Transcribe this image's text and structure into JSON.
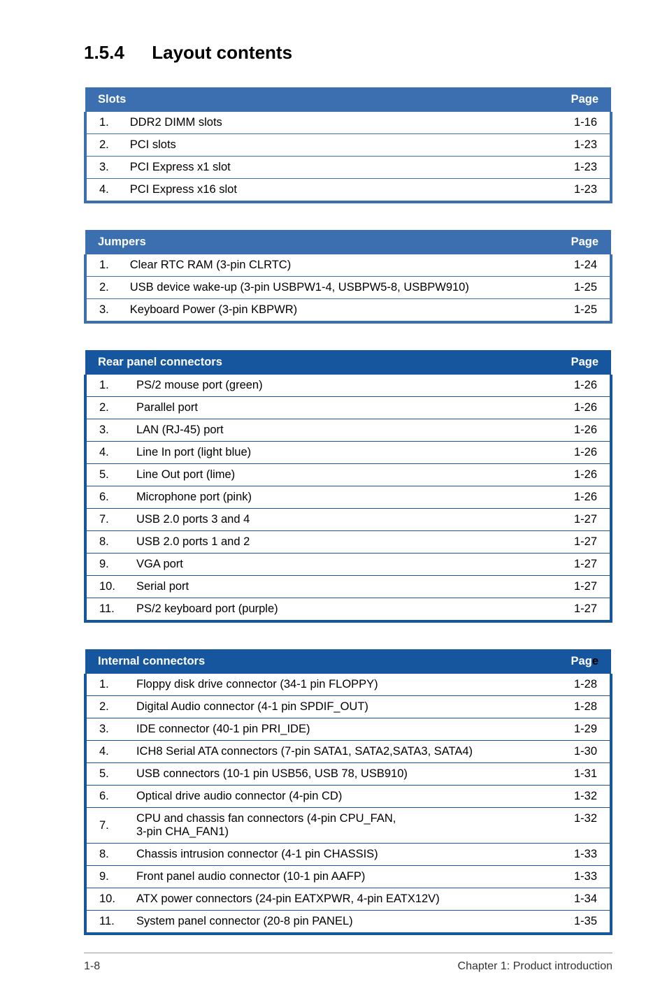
{
  "heading": {
    "number": "1.5.4",
    "title": "Layout contents"
  },
  "tables": [
    {
      "header_label": "Slots",
      "page_label": "Page",
      "header_bg": "#3b6fb0",
      "border_color": "#3b6fb0",
      "rows": [
        {
          "idx": "1.",
          "label": "DDR2 DIMM slots",
          "page": "1-16"
        },
        {
          "idx": "2.",
          "label": "PCI slots",
          "page": "1-23"
        },
        {
          "idx": "3.",
          "label": "PCI Express x1 slot",
          "page": "1-23"
        },
        {
          "idx": "4.",
          "label": "PCI Express x16 slot",
          "page": "1-23"
        }
      ]
    },
    {
      "header_label": "Jumpers",
      "page_label": "Page",
      "header_bg": "#3b6fb0",
      "border_color": "#3b6fb0",
      "rows": [
        {
          "idx": "1.",
          "label": "Clear RTC RAM (3-pin CLRTC)",
          "page": "1-24"
        },
        {
          "idx": "2.",
          "label": "USB device wake-up (3-pin USBPW1-4, USBPW5-8, USBPW910)",
          "page": "1-25"
        },
        {
          "idx": "3.",
          "label": "Keyboard Power (3-pin KBPWR)",
          "page": "1-25"
        }
      ]
    },
    {
      "header_label": "Rear panel connectors",
      "page_label": "Page",
      "header_bg": "#16569e",
      "border_color": "#16569e",
      "rows": [
        {
          "idx": "1.",
          "label": "PS/2 mouse port (green)",
          "page": "1-26"
        },
        {
          "idx": "2.",
          "label": "Parallel port",
          "page": "1-26"
        },
        {
          "idx": "3.",
          "label": "LAN (RJ-45) port",
          "page": "1-26"
        },
        {
          "idx": "4.",
          "label": "Line In port (light blue)",
          "page": "1-26"
        },
        {
          "idx": "5.",
          "label": "Line Out port (lime)",
          "page": "1-26"
        },
        {
          "idx": "6.",
          "label": "Microphone port (pink)",
          "page": "1-26"
        },
        {
          "idx": "7.",
          "label": "USB 2.0 ports 3 and 4",
          "page": "1-27"
        },
        {
          "idx": "8.",
          "label": "USB 2.0 ports 1 and 2",
          "page": "1-27"
        },
        {
          "idx": "9.",
          "label": "VGA port",
          "page": "1-27"
        },
        {
          "idx": "10.",
          "label": "Serial port",
          "page": "1-27"
        },
        {
          "idx": "11.",
          "label": "PS/2 keyboard port (purple)",
          "page": "1-27"
        }
      ]
    },
    {
      "header_label": "Internal connectors",
      "page_label": "Page",
      "header_bg": "#16569e",
      "border_color": "#16569e",
      "page_label_split": true,
      "rows": [
        {
          "idx": "1.",
          "label": "Floppy disk drive connector (34-1 pin FLOPPY)",
          "page": "1-28"
        },
        {
          "idx": "2.",
          "label": "Digital Audio connector (4-1 pin SPDIF_OUT)",
          "page": "1-28"
        },
        {
          "idx": "3.",
          "label": "IDE connector (40-1 pin PRI_IDE)",
          "page": "1-29"
        },
        {
          "idx": "4.",
          "label": "ICH8 Serial ATA connectors (7-pin SATA1, SATA2,SATA3, SATA4)",
          "page": "1-30"
        },
        {
          "idx": "5.",
          "label": "USB connectors (10-1 pin USB56, USB 78, USB910)",
          "page": "1-31"
        },
        {
          "idx": "6.",
          "label": "Optical drive audio connector (4-pin CD)",
          "page": "1-32"
        },
        {
          "idx": "7.",
          "label": "CPU and chassis fan connectors (4-pin CPU_FAN,\n3-pin CHA_FAN1)",
          "page": "1-32"
        },
        {
          "idx": "8.",
          "label": "Chassis intrusion connector (4-1 pin CHASSIS)",
          "page": "1-33"
        },
        {
          "idx": "9.",
          "label": "Front panel audio connector (10-1 pin AAFP)",
          "page": "1-33"
        },
        {
          "idx": "10.",
          "label": "ATX power connectors (24-pin EATXPWR, 4-pin EATX12V)",
          "page": "1-34"
        },
        {
          "idx": "11.",
          "label": "System panel connector (20-8 pin PANEL)",
          "page": "1-35"
        }
      ]
    }
  ],
  "footer": {
    "left": "1-8",
    "right": "Chapter 1: Product introduction"
  }
}
